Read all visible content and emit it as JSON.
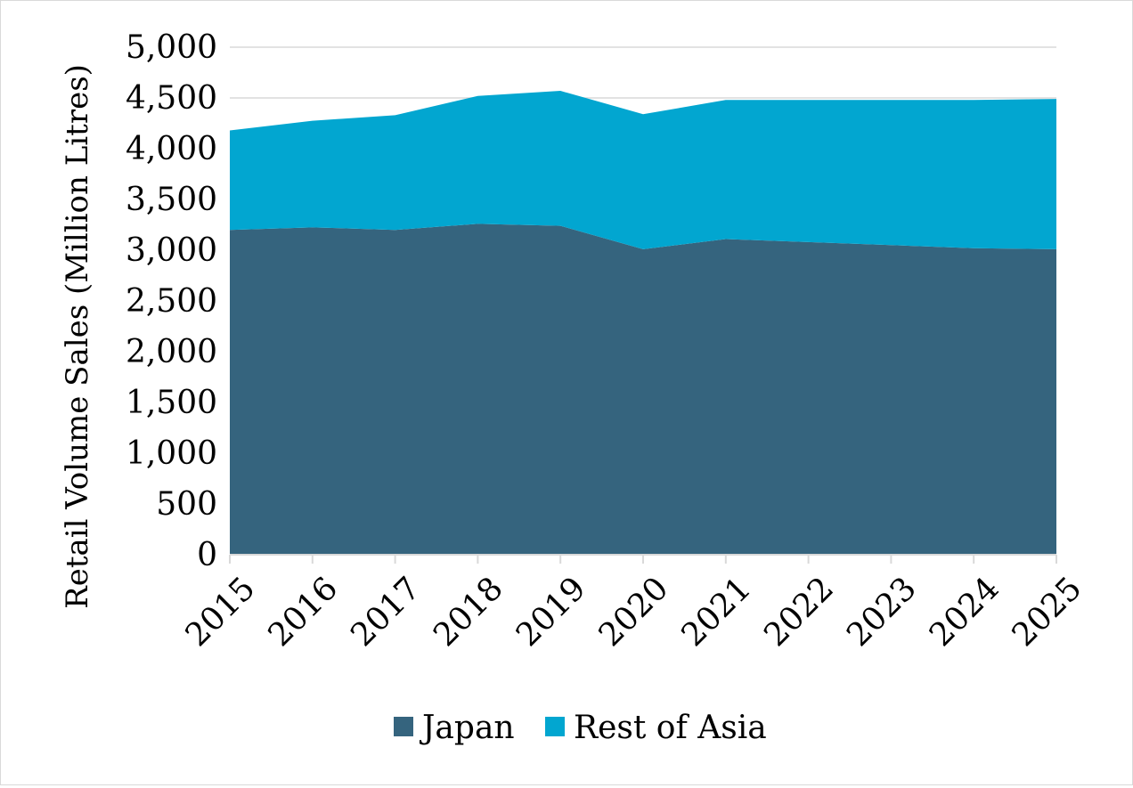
{
  "chart_data": {
    "type": "area",
    "stacked": true,
    "x": [
      "2015",
      "2016",
      "2017",
      "2018",
      "2019",
      "2020",
      "2021",
      "2022",
      "2023",
      "2024",
      "2025"
    ],
    "series": [
      {
        "name": "Japan",
        "color": "#35647e",
        "values": [
          3200,
          3225,
          3200,
          3260,
          3240,
          3010,
          3110,
          3080,
          3050,
          3020,
          3010
        ]
      },
      {
        "name": "Rest of Asia",
        "color": "#02a6d0",
        "values": [
          980,
          1050,
          1130,
          1260,
          1330,
          1330,
          1370,
          1400,
          1430,
          1460,
          1480
        ]
      }
    ],
    "ylabel": "Retail Volume Sales (Million Litres)",
    "xlabel": "",
    "title": "",
    "ylim": [
      0,
      5000
    ],
    "yticks": [
      "0",
      "500",
      "1,000",
      "1,500",
      "2,000",
      "2,500",
      "3,000",
      "3,500",
      "4,000",
      "4,500",
      "5,000"
    ],
    "grid": true,
    "legend_position": "bottom"
  }
}
